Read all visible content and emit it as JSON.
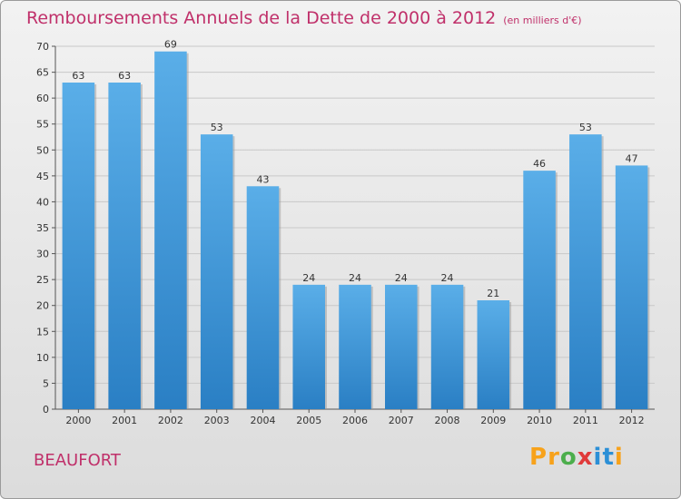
{
  "chart_title": "Remboursements Annuels de la Dette de 2000 à 2012",
  "chart_unit": "(en milliers d'€)",
  "city": "BEAUFORT",
  "logo": {
    "text": "Proxiti",
    "letters": [
      "P",
      "r",
      "o",
      "x",
      "i",
      "t",
      "i"
    ],
    "colors": [
      "#f7a21b",
      "#f7a21b",
      "#4cae4c",
      "#e03a3a",
      "#2b8fd6",
      "#2b8fd6",
      "#f7a21b"
    ]
  },
  "chart_data": {
    "type": "bar",
    "title": "Remboursements Annuels de la Dette de 2000 à 2012",
    "subtitle": "(en milliers d'€)",
    "categories": [
      "2000",
      "2001",
      "2002",
      "2003",
      "2004",
      "2005",
      "2006",
      "2007",
      "2008",
      "2009",
      "2010",
      "2011",
      "2012"
    ],
    "values": [
      63,
      63,
      69,
      53,
      43,
      24,
      24,
      24,
      24,
      21,
      46,
      53,
      47
    ],
    "ylim": [
      0,
      70
    ],
    "yticks": [
      0,
      5,
      10,
      15,
      20,
      25,
      30,
      35,
      40,
      45,
      50,
      55,
      60,
      65,
      70
    ],
    "grid": true,
    "bar_color_top": "#5aaee8",
    "bar_color_bottom": "#2a7fc4"
  }
}
